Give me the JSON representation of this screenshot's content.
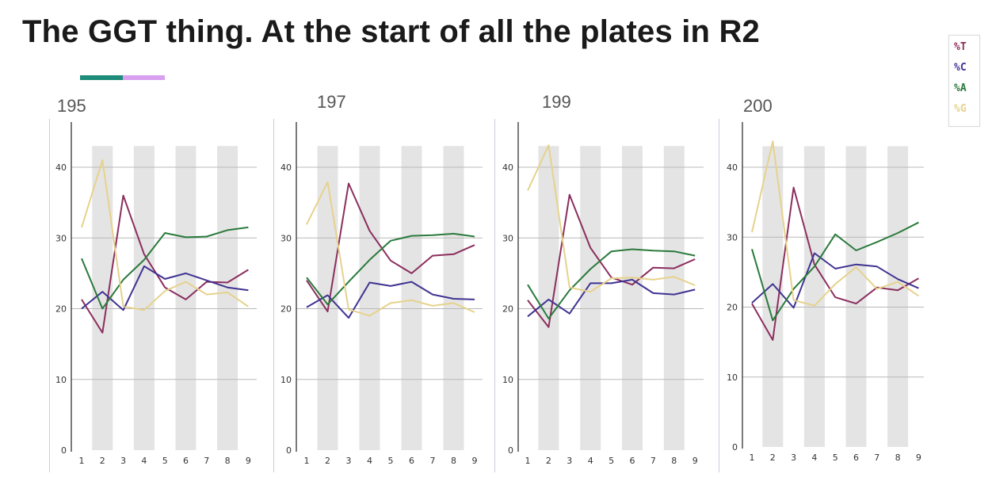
{
  "title": "The GGT thing. At the start of all the plates in R2",
  "accent_colors": [
    "#1e8c7a",
    "#d9a0f0"
  ],
  "legend": [
    {
      "label": "%T",
      "color": "#8b2e5e"
    },
    {
      "label": "%C",
      "color": "#3f3391"
    },
    {
      "label": "%A",
      "color": "#2a7a3c"
    },
    {
      "label": "%G",
      "color": "#e6d28c"
    }
  ],
  "chart_data": [
    {
      "type": "line",
      "label": "195",
      "x": [
        1,
        2,
        3,
        4,
        5,
        6,
        7,
        8,
        9
      ],
      "ylim": [
        0,
        43
      ],
      "yticks": [
        0,
        10,
        20,
        30,
        40
      ],
      "grid": true,
      "shaded_bands": [
        2,
        4,
        6,
        8
      ],
      "series": [
        {
          "name": "%T",
          "values": [
            21.3,
            16.6,
            36.0,
            27.7,
            23.0,
            21.3,
            23.8,
            23.7,
            25.5
          ]
        },
        {
          "name": "%C",
          "values": [
            20.0,
            22.4,
            19.8,
            26.0,
            24.2,
            25.0,
            24.0,
            23.0,
            22.6
          ]
        },
        {
          "name": "%A",
          "values": [
            27.1,
            20.0,
            24.1,
            26.9,
            30.7,
            30.1,
            30.2,
            31.1,
            31.5
          ]
        },
        {
          "name": "%G",
          "values": [
            31.5,
            41.0,
            20.3,
            19.8,
            22.5,
            23.8,
            22.0,
            22.3,
            20.3
          ]
        }
      ]
    },
    {
      "type": "line",
      "label": "197",
      "x": [
        1,
        2,
        3,
        4,
        5,
        6,
        7,
        8,
        9
      ],
      "ylim": [
        0,
        43
      ],
      "yticks": [
        0,
        10,
        20,
        30,
        40
      ],
      "grid": true,
      "shaded_bands": [
        2,
        4,
        6,
        8
      ],
      "series": [
        {
          "name": "%T",
          "values": [
            24.0,
            19.6,
            37.7,
            31.0,
            26.8,
            25.0,
            27.5,
            27.7,
            29.0
          ]
        },
        {
          "name": "%C",
          "values": [
            20.2,
            21.9,
            18.7,
            23.7,
            23.2,
            23.8,
            22.0,
            21.4,
            21.3
          ]
        },
        {
          "name": "%A",
          "values": [
            24.4,
            20.6,
            23.8,
            26.9,
            29.6,
            30.3,
            30.4,
            30.6,
            30.2
          ]
        },
        {
          "name": "%G",
          "values": [
            31.9,
            37.9,
            19.9,
            19.0,
            20.8,
            21.2,
            20.4,
            20.8,
            19.5
          ]
        }
      ]
    },
    {
      "type": "line",
      "label": "199",
      "x": [
        1,
        2,
        3,
        4,
        5,
        6,
        7,
        8,
        9
      ],
      "ylim": [
        0,
        43
      ],
      "yticks": [
        0,
        10,
        20,
        30,
        40
      ],
      "grid": true,
      "shaded_bands": [
        2,
        4,
        6,
        8
      ],
      "series": [
        {
          "name": "%T",
          "values": [
            21.2,
            17.4,
            36.1,
            28.6,
            24.4,
            23.4,
            25.8,
            25.7,
            27.0
          ]
        },
        {
          "name": "%C",
          "values": [
            18.9,
            21.3,
            19.3,
            23.6,
            23.6,
            24.1,
            22.2,
            22.0,
            22.7
          ]
        },
        {
          "name": "%A",
          "values": [
            23.4,
            18.6,
            22.6,
            25.6,
            28.1,
            28.4,
            28.2,
            28.1,
            27.5
          ]
        },
        {
          "name": "%G",
          "values": [
            36.7,
            43.1,
            23.0,
            22.4,
            24.3,
            24.4,
            24.1,
            24.5,
            23.3
          ]
        }
      ]
    },
    {
      "type": "line",
      "label": "200",
      "x": [
        1,
        2,
        3,
        4,
        5,
        6,
        7,
        8,
        9
      ],
      "ylim": [
        0,
        43
      ],
      "yticks": [
        0,
        10,
        20,
        30,
        40
      ],
      "grid": true,
      "shaded_bands": [
        2,
        4,
        6,
        8
      ],
      "series": [
        {
          "name": "%T",
          "values": [
            20.5,
            15.3,
            37.1,
            26.1,
            21.4,
            20.5,
            22.8,
            22.4,
            24.1
          ]
        },
        {
          "name": "%C",
          "values": [
            20.6,
            23.3,
            19.9,
            27.7,
            25.5,
            26.1,
            25.8,
            24.0,
            22.7
          ]
        },
        {
          "name": "%A",
          "values": [
            28.3,
            18.1,
            22.6,
            25.8,
            30.4,
            28.1,
            29.3,
            30.6,
            32.1
          ]
        },
        {
          "name": "%G",
          "values": [
            30.7,
            43.7,
            21.0,
            20.2,
            23.3,
            25.7,
            22.6,
            23.6,
            21.6
          ]
        }
      ]
    }
  ]
}
